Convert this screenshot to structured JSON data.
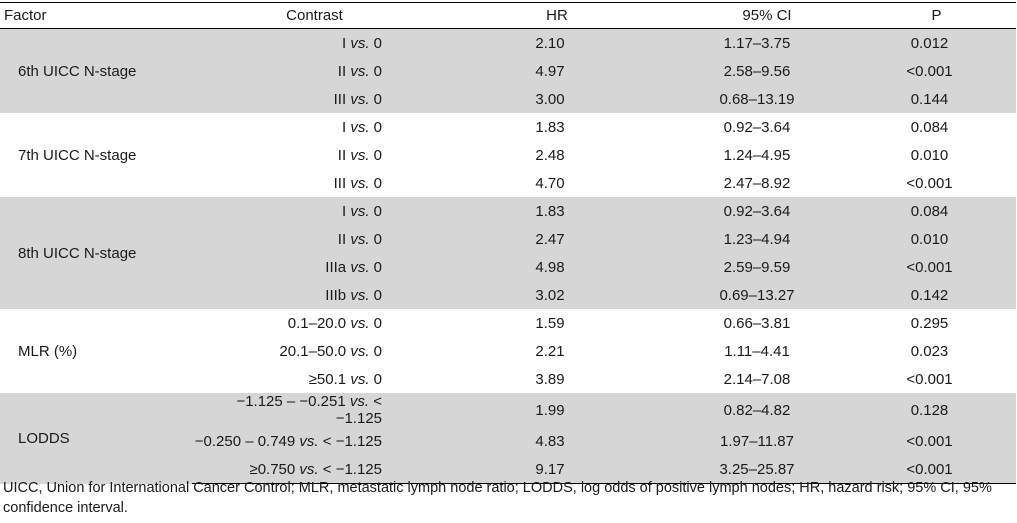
{
  "table": {
    "headers": {
      "factor": "Factor",
      "contrast": "Contrast",
      "hr": "HR",
      "ci": "95% CI",
      "p": "P"
    },
    "groups": [
      {
        "factor": "6th UICC N-stage",
        "shade": "gray",
        "rows": [
          {
            "a": "I",
            "vs": "vs.",
            "b": "0",
            "hr": "2.10",
            "ci": "1.17–3.75",
            "p": "0.012"
          },
          {
            "a": "II",
            "vs": "vs.",
            "b": "0",
            "hr": "4.97",
            "ci": "2.58–9.56",
            "p": "<0.001"
          },
          {
            "a": "III",
            "vs": "vs.",
            "b": "0",
            "hr": "3.00",
            "ci": "0.68–13.19",
            "p": "0.144"
          }
        ]
      },
      {
        "factor": "7th UICC N-stage",
        "shade": "white",
        "rows": [
          {
            "a": "I",
            "vs": "vs.",
            "b": "0",
            "hr": "1.83",
            "ci": "0.92–3.64",
            "p": "0.084"
          },
          {
            "a": "II",
            "vs": "vs.",
            "b": "0",
            "hr": "2.48",
            "ci": "1.24–4.95",
            "p": "0.010"
          },
          {
            "a": "III",
            "vs": "vs.",
            "b": "0",
            "hr": "4.70",
            "ci": "2.47–8.92",
            "p": "<0.001"
          }
        ]
      },
      {
        "factor": "8th UICC N-stage",
        "shade": "gray",
        "rows": [
          {
            "a": "I",
            "vs": "vs.",
            "b": "0",
            "hr": "1.83",
            "ci": "0.92–3.64",
            "p": "0.084"
          },
          {
            "a": "II",
            "vs": "vs.",
            "b": "0",
            "hr": "2.47",
            "ci": "1.23–4.94",
            "p": "0.010"
          },
          {
            "a": "IIIa",
            "vs": "vs.",
            "b": "0",
            "hr": "4.98",
            "ci": "2.59–9.59",
            "p": "<0.001"
          },
          {
            "a": "IIIb",
            "vs": "vs.",
            "b": "0",
            "hr": "3.02",
            "ci": "0.69–13.27",
            "p": "0.142"
          }
        ]
      },
      {
        "factor": "MLR (%)",
        "shade": "white",
        "rows": [
          {
            "a": "0.1–20.0",
            "vs": "vs.",
            "b": "0",
            "hr": "1.59",
            "ci": "0.66–3.81",
            "p": "0.295"
          },
          {
            "a": "20.1–50.0",
            "vs": "vs.",
            "b": "0",
            "hr": "2.21",
            "ci": "1.11–4.41",
            "p": "0.023"
          },
          {
            "a": "≥50.1",
            "vs": "vs.",
            "b": "0",
            "hr": "3.89",
            "ci": "2.14–7.08",
            "p": "<0.001"
          }
        ]
      },
      {
        "factor": "LODDS",
        "shade": "gray",
        "rows": [
          {
            "a": "−1.125 – −0.251",
            "vs": "vs.",
            "b": "< −1.125",
            "hr": "1.99",
            "ci": "0.82–4.82",
            "p": "0.128"
          },
          {
            "a": "−0.250 – 0.749",
            "vs": "vs.",
            "b": "< −1.125",
            "hr": "4.83",
            "ci": "1.97–11.87",
            "p": "<0.001"
          },
          {
            "a": "≥0.750",
            "vs": "vs.",
            "b": "< −1.125",
            "hr": "9.17",
            "ci": "3.25–25.87",
            "p": "<0.001"
          }
        ]
      }
    ]
  },
  "footnote": "UICC, Union for International Cancer Control; MLR, metastatic lymph node ratio; LODDS, log odds of positive lymph nodes; HR, hazard risk; 95% CI, 95% confidence interval.",
  "colors": {
    "shade_gray": "#d6d6d6",
    "shade_white": "#ffffff",
    "text": "#1a1a1a",
    "rule": "#000000"
  }
}
